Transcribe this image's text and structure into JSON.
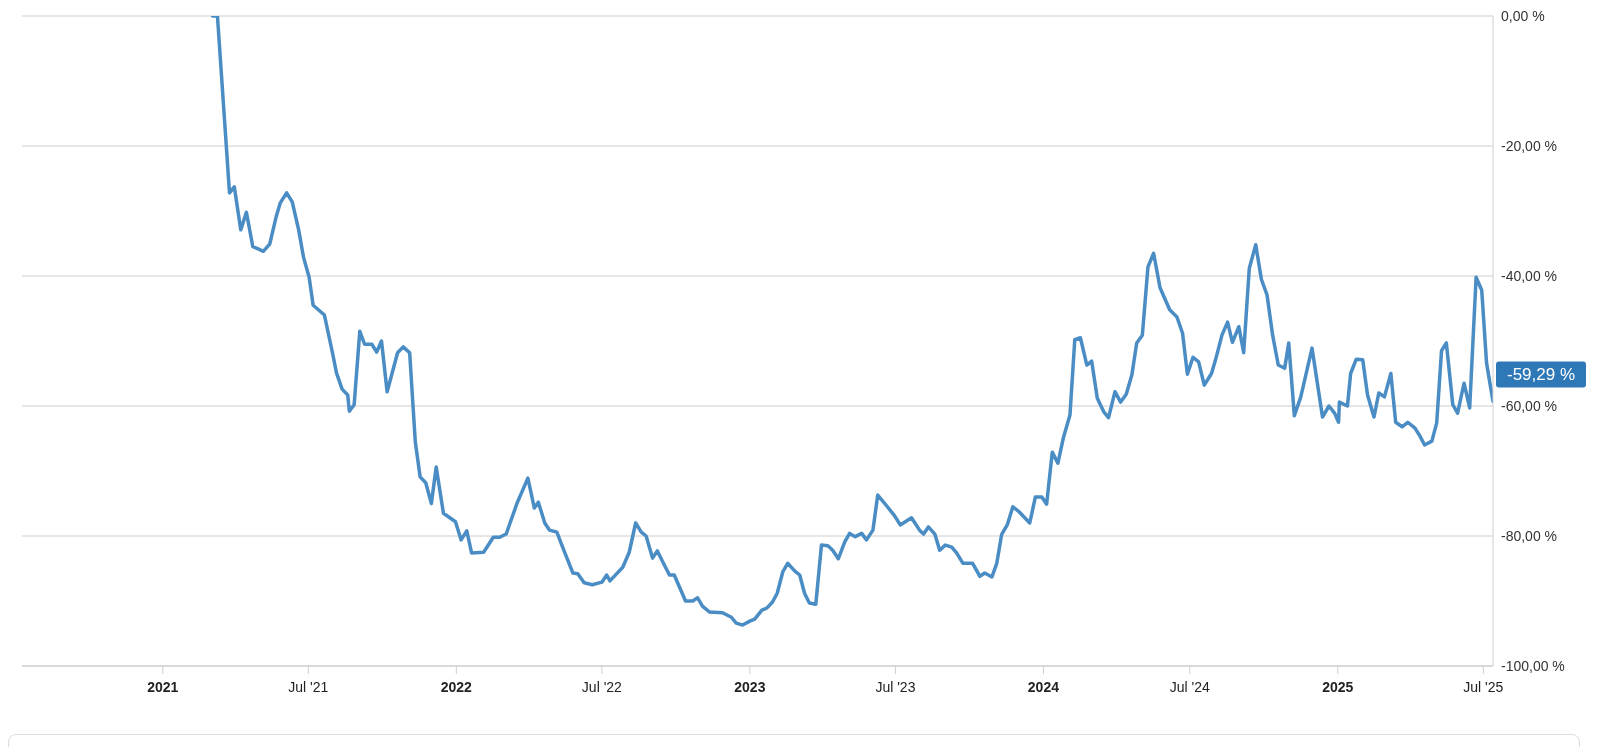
{
  "chart_data": {
    "type": "line",
    "color": "#4a8cc4",
    "grid": "y",
    "line_style": "solid",
    "marker": "none",
    "xlim": [
      "2020-07-10",
      "2025-07-13"
    ],
    "xticks": [
      {
        "value": "2021-01-01",
        "label": "2021"
      },
      {
        "value": "2021-07-01",
        "label": "Jul '21"
      },
      {
        "value": "2022-01-01",
        "label": "2022"
      },
      {
        "value": "2022-07-01",
        "label": "Jul '22"
      },
      {
        "value": "2023-01-01",
        "label": "2023"
      },
      {
        "value": "2023-07-01",
        "label": "Jul '23"
      },
      {
        "value": "2024-01-01",
        "label": "2024"
      },
      {
        "value": "2024-07-01",
        "label": "Jul '24"
      },
      {
        "value": "2025-01-01",
        "label": "2025"
      },
      {
        "value": "2025-07-01",
        "label": "Jul '25"
      }
    ],
    "ylim": [
      -100,
      0
    ],
    "yticks": [
      {
        "value": 0,
        "label": "0,00 %"
      },
      {
        "value": -20,
        "label": "-20,00 %"
      },
      {
        "value": -40,
        "label": "-40,00 %"
      },
      {
        "value": -60,
        "label": "-60,00 %"
      },
      {
        "value": -80,
        "label": "-80,00 %"
      },
      {
        "value": -100,
        "label": "-100,00 %"
      }
    ],
    "annotations": [
      {
        "text": "-59,29 %",
        "x": "2025-07-13",
        "y": -59.29
      }
    ],
    "x": [
      "2021-03-04",
      "2021-03-10",
      "2021-03-25",
      "2021-03-31",
      "2021-04-08",
      "2021-04-15",
      "2021-04-23",
      "2021-04-29",
      "2021-05-06",
      "2021-05-14",
      "2021-05-22",
      "2021-05-27",
      "2021-06-04",
      "2021-06-11",
      "2021-06-19",
      "2021-06-25",
      "2021-07-02",
      "2021-07-07",
      "2021-07-21",
      "2021-07-31",
      "2021-08-05",
      "2021-08-12",
      "2021-08-19",
      "2021-08-21",
      "2021-08-27",
      "2021-09-03",
      "2021-09-09",
      "2021-09-18",
      "2021-09-24",
      "2021-09-30",
      "2021-10-07",
      "2021-10-20",
      "2021-10-27",
      "2021-11-04",
      "2021-11-11",
      "2021-11-17",
      "2021-11-24",
      "2021-12-01",
      "2021-12-07",
      "2021-12-16",
      "2021-12-31",
      "2022-01-07",
      "2022-01-14",
      "2022-01-20",
      "2022-02-04",
      "2022-02-16",
      "2022-02-24",
      "2022-03-04",
      "2022-03-18",
      "2022-03-31",
      "2022-04-08",
      "2022-04-13",
      "2022-04-21",
      "2022-04-27",
      "2022-05-06",
      "2022-05-16",
      "2022-05-26",
      "2022-06-01",
      "2022-06-09",
      "2022-06-19",
      "2022-07-01",
      "2022-07-07",
      "2022-07-11",
      "2022-07-27",
      "2022-08-04",
      "2022-08-12",
      "2022-08-19",
      "2022-08-25",
      "2022-09-02",
      "2022-09-08",
      "2022-09-14",
      "2022-09-23",
      "2022-09-29",
      "2022-10-13",
      "2022-10-22",
      "2022-10-28",
      "2022-11-03",
      "2022-11-12",
      "2022-11-28",
      "2022-12-09",
      "2022-12-15",
      "2022-12-23",
      "2023-01-01",
      "2023-01-07",
      "2023-01-16",
      "2023-01-22",
      "2023-01-29",
      "2023-02-04",
      "2023-02-11",
      "2023-02-17",
      "2023-02-26",
      "2023-03-04",
      "2023-03-10",
      "2023-03-16",
      "2023-03-24",
      "2023-03-31",
      "2023-04-08",
      "2023-04-14",
      "2023-04-21",
      "2023-04-29",
      "2023-05-05",
      "2023-05-12",
      "2023-05-20",
      "2023-05-26",
      "2023-06-03",
      "2023-06-09",
      "2023-06-21",
      "2023-06-30",
      "2023-07-07",
      "2023-07-21",
      "2023-07-31",
      "2023-08-05",
      "2023-08-11",
      "2023-08-19",
      "2023-08-25",
      "2023-09-01",
      "2023-09-09",
      "2023-09-15",
      "2023-09-23",
      "2023-10-05",
      "2023-10-14",
      "2023-10-20",
      "2023-10-29",
      "2023-11-04",
      "2023-11-10",
      "2023-11-17",
      "2023-11-24",
      "2023-12-02",
      "2023-12-15",
      "2023-12-22",
      "2023-12-30",
      "2024-01-05",
      "2024-01-12",
      "2024-01-19",
      "2024-01-26",
      "2024-02-03",
      "2024-02-09",
      "2024-02-16",
      "2024-02-24",
      "2024-03-01",
      "2024-03-08",
      "2024-03-16",
      "2024-03-22",
      "2024-03-30",
      "2024-04-06",
      "2024-04-13",
      "2024-04-20",
      "2024-04-26",
      "2024-05-03",
      "2024-05-10",
      "2024-05-17",
      "2024-05-25",
      "2024-06-06",
      "2024-06-15",
      "2024-06-22",
      "2024-06-28",
      "2024-07-05",
      "2024-07-12",
      "2024-07-19",
      "2024-07-28",
      "2024-08-02",
      "2024-08-10",
      "2024-08-17",
      "2024-08-23",
      "2024-08-31",
      "2024-09-06",
      "2024-09-13",
      "2024-09-21",
      "2024-09-28",
      "2024-10-05",
      "2024-10-12",
      "2024-10-19",
      "2024-10-27",
      "2024-11-01",
      "2024-11-08",
      "2024-11-16",
      "2024-11-30",
      "2024-12-13",
      "2024-12-21",
      "2024-12-28",
      "2025-01-02",
      "2025-01-03",
      "2025-01-13",
      "2025-01-17",
      "2025-01-24",
      "2025-02-01",
      "2025-02-07",
      "2025-02-15",
      "2025-02-21",
      "2025-02-28",
      "2025-03-08",
      "2025-03-14",
      "2025-03-22",
      "2025-03-29",
      "2025-04-07",
      "2025-04-13",
      "2025-04-19",
      "2025-04-28",
      "2025-05-04",
      "2025-05-10",
      "2025-05-16",
      "2025-05-24",
      "2025-05-30",
      "2025-06-07",
      "2025-06-14",
      "2025-06-22",
      "2025-06-29",
      "2025-07-05",
      "2025-07-13"
    ],
    "values": [
      0,
      0,
      -27.2,
      -26.3,
      -32.9,
      -30.2,
      -35.5,
      -35.8,
      -36.2,
      -35.1,
      -30.9,
      -28.8,
      -27.2,
      -28.6,
      -32.9,
      -37.1,
      -40.2,
      -44.5,
      -46,
      -51.8,
      -54.9,
      -57.4,
      -58.3,
      -60.8,
      -59.8,
      -48.5,
      -50.5,
      -50.5,
      -51.7,
      -50,
      -57.8,
      -51.8,
      -50.9,
      -51.8,
      -65.5,
      -70.9,
      -71.8,
      -75,
      -69.4,
      -76.5,
      -77.8,
      -80.6,
      -79.2,
      -82.6,
      -82.5,
      -80.2,
      -80.2,
      -79.7,
      -74.8,
      -71.1,
      -75.7,
      -74.8,
      -78,
      -79.1,
      -79.4,
      -82.6,
      -85.7,
      -85.8,
      -87.2,
      -87.5,
      -87.1,
      -86,
      -86.9,
      -84.8,
      -82.5,
      -78,
      -79.4,
      -80,
      -83.4,
      -82.3,
      -83.8,
      -86,
      -86,
      -90,
      -90,
      -89.5,
      -90.8,
      -91.7,
      -91.8,
      -92.5,
      -93.4,
      -93.7,
      -93.1,
      -92.8,
      -91.4,
      -91.1,
      -90.2,
      -88.8,
      -85.5,
      -84.2,
      -85.4,
      -86,
      -88.8,
      -90.3,
      -90.5,
      -81.4,
      -81.5,
      -82.2,
      -83.5,
      -80.9,
      -79.6,
      -80.1,
      -79.6,
      -80.6,
      -79.1,
      -73.7,
      -75.5,
      -76.9,
      -78.3,
      -77.2,
      -79.1,
      -79.7,
      -78.6,
      -79.7,
      -82.2,
      -81.4,
      -81.7,
      -82.6,
      -84.2,
      -84.2,
      -86.2,
      -85.7,
      -86.3,
      -84.2,
      -79.8,
      -78.3,
      -75.5,
      -76.3,
      -78,
      -74,
      -74,
      -75.1,
      -67.1,
      -68.8,
      -64.8,
      -61.4,
      -49.8,
      -49.5,
      -53.7,
      -53.1,
      -58.8,
      -60.9,
      -61.8,
      -57.8,
      -59.4,
      -58.2,
      -55.2,
      -50.3,
      -49.1,
      -38.6,
      -36.5,
      -41.8,
      -45.2,
      -46.3,
      -48.8,
      -55.1,
      -52.5,
      -53.2,
      -56.8,
      -55,
      -52.9,
      -49.1,
      -47.1,
      -50.2,
      -47.8,
      -51.8,
      -38.8,
      -35.2,
      -40.5,
      -42.9,
      -49.1,
      -53.7,
      -54.2,
      -50.3,
      -61.5,
      -58.6,
      -51.1,
      -61.7,
      -60,
      -61.1,
      -62.5,
      -59.4,
      -60,
      -55,
      -52.8,
      -52.9,
      -58.3,
      -61.7,
      -58,
      -58.6,
      -55,
      -62.5,
      -63.2,
      -62.5,
      -63.4,
      -64.6,
      -66,
      -65.4,
      -62.6,
      -51.5,
      -50.3,
      -59.8,
      -61.1,
      -56.5,
      -60.3,
      -40.2,
      -42.2,
      -53.4,
      -59.29
    ]
  }
}
